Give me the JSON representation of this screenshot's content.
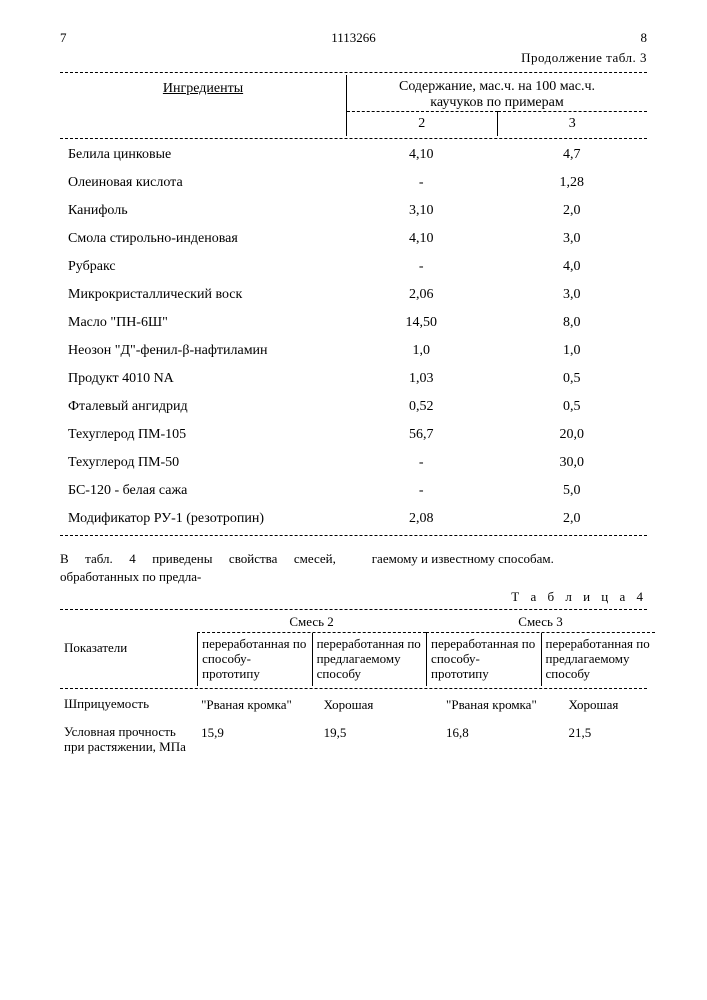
{
  "header": {
    "left_page": "7",
    "doc_number": "1113266",
    "right_page": "8",
    "continuation": "Продолжение табл. 3"
  },
  "table3": {
    "col_ingredients": "Ингредиенты",
    "col_content_line1": "Содержание, мас.ч. на 100 мас.ч.",
    "col_content_line2": "каучуков по примерам",
    "sub_col2": "2",
    "sub_col3": "3",
    "rows": [
      {
        "name": "Белила цинковые",
        "v2": "4,10",
        "v3": "4,7"
      },
      {
        "name": "Олеиновая кислота",
        "v2": "-",
        "v3": "1,28"
      },
      {
        "name": "Канифоль",
        "v2": "3,10",
        "v3": "2,0"
      },
      {
        "name": "Смола стирольно-инденовая",
        "v2": "4,10",
        "v3": "3,0"
      },
      {
        "name": "Рубракс",
        "v2": "-",
        "v3": "4,0"
      },
      {
        "name": "Микрокристаллический воск",
        "v2": "2,06",
        "v3": "3,0"
      },
      {
        "name": "Масло \"ПН-6Ш\"",
        "v2": "14,50",
        "v3": "8,0"
      },
      {
        "name": "Неозон \"Д\"-фенил-β-нафтиламин",
        "v2": "1,0",
        "v3": "1,0"
      },
      {
        "name": "Продукт 4010 NA",
        "v2": "1,03",
        "v3": "0,5"
      },
      {
        "name": "Фталевый ангидрид",
        "v2": "0,52",
        "v3": "0,5"
      },
      {
        "name": "Техуглерод ПМ-105",
        "v2": "56,7",
        "v3": "20,0"
      },
      {
        "name": "Техуглерод ПМ-50",
        "v2": "-",
        "v3": "30,0"
      },
      {
        "name": "БС-120 - белая сажа",
        "v2": "-",
        "v3": "5,0"
      },
      {
        "name": "Модификатор РУ-1 (резотропин)",
        "v2": "2,08",
        "v3": "2,0"
      }
    ]
  },
  "midtext": {
    "left": "В табл. 4 приведены свойства смесей, обработанных по предла-",
    "right": "гаемому и известному способам."
  },
  "table4": {
    "label": "Т а б л и ц а  4",
    "col_indicators": "Показатели",
    "group2": "Смесь 2",
    "group3": "Смесь 3",
    "sub_proto": "переработанная по способу-прототипу",
    "sub_proto2": "переработанная по способу-прототипу",
    "sub_offer": "переработанная по предлагаемому способу",
    "sub_offer2": "переработанная по предлагаемому способу",
    "rows": [
      {
        "name": "Шприцуемость",
        "v1": "\"Рваная кромка\"",
        "v2": "Хорошая",
        "v3": "\"Рваная кромка\"",
        "v4": "Хорошая"
      },
      {
        "name": "Условная прочность при растяжении, МПа",
        "v1": "15,9",
        "v2": "19,5",
        "v3": "16,8",
        "v4": "21,5"
      }
    ]
  }
}
